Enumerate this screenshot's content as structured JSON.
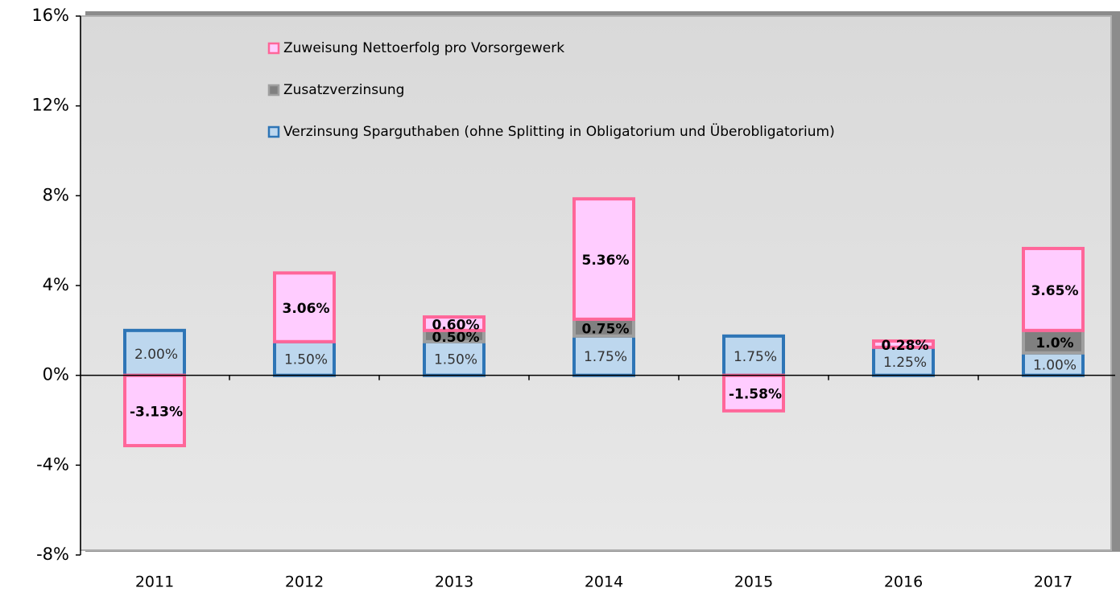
{
  "chart_data": {
    "type": "stacked_bar",
    "categories": [
      "2011",
      "2012",
      "2013",
      "2014",
      "2015",
      "2016",
      "2017"
    ],
    "series": [
      {
        "name": "Verzinsung Sparguthaben (ohne Splitting in Obligatorium und Überobligatorium)",
        "color": "#bdd7ee",
        "edge": "#2e75b6",
        "values": [
          2.0,
          1.5,
          1.5,
          1.75,
          1.75,
          1.25,
          1.0
        ],
        "value_labels": [
          "2.00%",
          "1.50%",
          "1.50%",
          "1.75%",
          "1.75%",
          "1.25%",
          "1.00%"
        ]
      },
      {
        "name": "Zusatzverzinsung",
        "color": "#808080",
        "edge": "#a0a0a0",
        "values": [
          null,
          null,
          0.5,
          0.75,
          null,
          null,
          1.0
        ],
        "value_labels": [
          null,
          null,
          "0.50%",
          "0.75%",
          null,
          null,
          "1.0%"
        ]
      },
      {
        "name": "Zuweisung Nettoerfolg pro Vorsorgewerk",
        "color": "#ffccff",
        "edge": "#ff6699",
        "values": [
          -3.13,
          3.06,
          0.6,
          5.36,
          -1.58,
          0.28,
          3.65
        ],
        "value_labels": [
          "-3.13%",
          "3.06%",
          "0.60%",
          "5.36%",
          "-1.58%",
          "0.28%",
          "3.65%"
        ]
      }
    ],
    "ylim": [
      -8,
      16
    ],
    "yticks": [
      {
        "value": -8,
        "label": "-8%"
      },
      {
        "value": -4,
        "label": "-4%"
      },
      {
        "value": 0,
        "label": "0%"
      },
      {
        "value": 4,
        "label": "4%"
      },
      {
        "value": 8,
        "label": "8%"
      },
      {
        "value": 12,
        "label": "12%"
      },
      {
        "value": 16,
        "label": "16%"
      }
    ]
  }
}
